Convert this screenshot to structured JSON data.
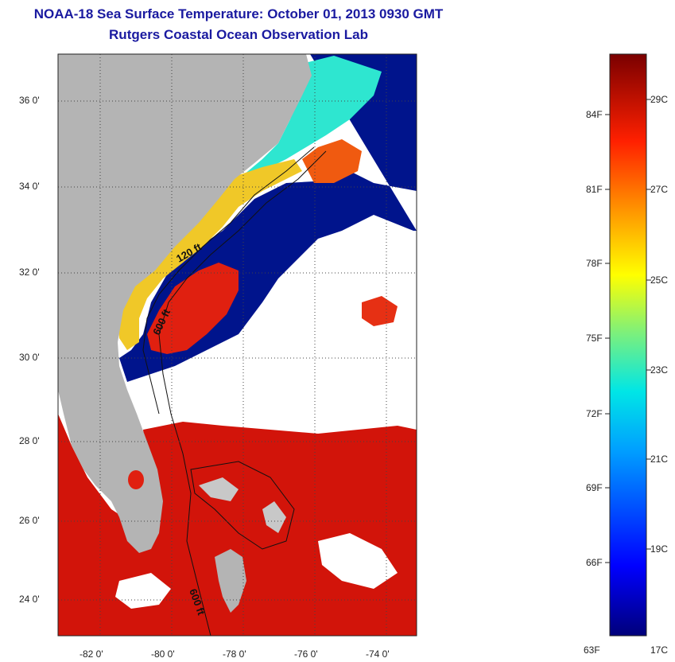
{
  "title": "NOAA-18 Sea Surface Temperature:  October 01, 2013 0930 GMT",
  "subtitle": "Rutgers Coastal Ocean Observation Lab",
  "map": {
    "lon_range": [
      -83,
      -73
    ],
    "lat_range": [
      23,
      37
    ],
    "lon_ticks": [
      "-82 0'",
      "-80 0'",
      "-78 0'",
      "-76 0'",
      "-74 0'"
    ],
    "lat_ticks": [
      "36 0'",
      "34 0'",
      "32 0'",
      "30 0'",
      "28 0'",
      "26 0'",
      "24 0'"
    ],
    "contour_labels": [
      "120 ft",
      "600 ft",
      "600 ft"
    ],
    "colors": {
      "land": "#b4b4b4",
      "cloud": "#ffffff",
      "cold": "#00148c",
      "warm": "#d2140a",
      "hot": "#b40000"
    }
  },
  "colorbar": {
    "fahrenheit": [
      "84F",
      "81F",
      "78F",
      "75F",
      "72F",
      "69F",
      "66F",
      "63F"
    ],
    "celsius": [
      "29C",
      "27C",
      "25C",
      "23C",
      "21C",
      "19C",
      "17C"
    ],
    "range_c": [
      17,
      30
    ]
  }
}
